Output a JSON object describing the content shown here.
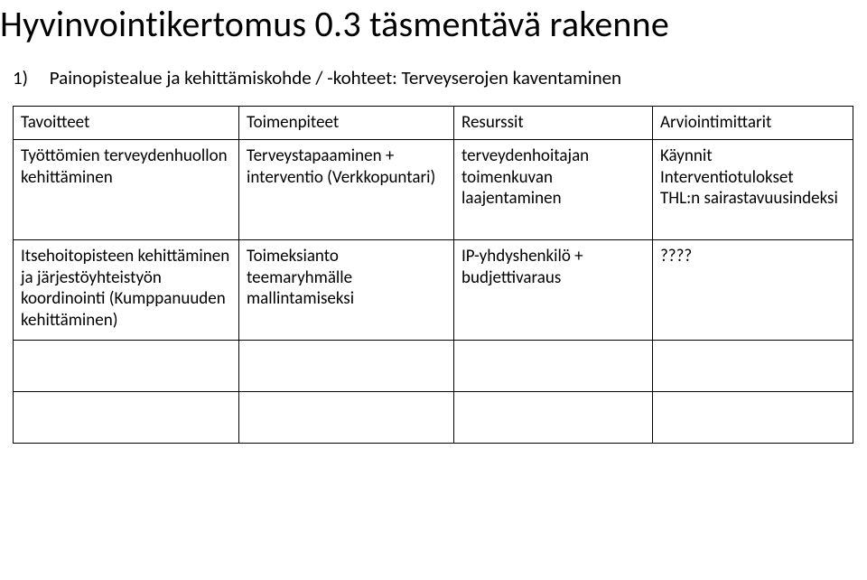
{
  "title": "Hyvinvointikertomus 0.3 täsmentävä rakenne",
  "subhead": {
    "number": "1)",
    "text": "Painopistealue ja kehittämiskohde / -kohteet: Terveyserojen kaventaminen"
  },
  "table": {
    "headers": [
      "Tavoitteet",
      "Toimenpiteet",
      "Resurssit",
      "Arviointimittarit"
    ],
    "rows": [
      {
        "c1": "Työttömien terveydenhuollon kehittäminen",
        "c2": " Terveystapaaminen + interventio (Verkkopuntari)",
        "c3": " terveydenhoitajan toimenkuvan laajentaminen",
        "c4": " Käynnit\nInterventiotulokset\nTHL:n sairastavuusindeksi"
      },
      {
        "c1": "Itsehoitopisteen kehittäminen ja järjestöyhteistyön koordinointi (Kumppanuuden kehittäminen)",
        "c2": "Toimeksianto teemaryhmälle mallintamiseksi",
        "c3": "IP-yhdyshenkilö + budjettivaraus",
        "c4": "????"
      }
    ]
  },
  "colors": {
    "text": "#000000",
    "background": "#ffffff",
    "border": "#000000"
  }
}
